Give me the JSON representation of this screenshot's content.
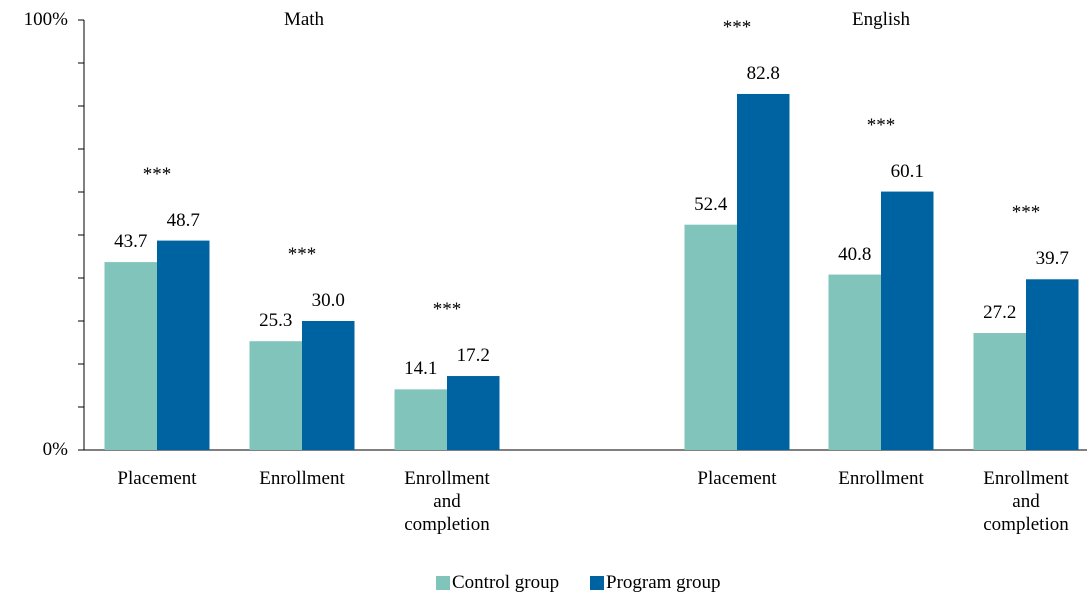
{
  "chart_data": {
    "type": "bar",
    "ylim": [
      0,
      100
    ],
    "yticks": [
      {
        "value": 0,
        "label": "0%"
      },
      {
        "value": 100,
        "label": "100%"
      }
    ],
    "minor_yticks": [
      10,
      20,
      30,
      40,
      50,
      60,
      70,
      80,
      90
    ],
    "panels": [
      {
        "title": "Math",
        "categories": [
          "Placement",
          "Enrollment",
          "Enrollment and completion"
        ],
        "significance": [
          "***",
          "***",
          "***"
        ]
      },
      {
        "title": "English",
        "categories": [
          "Placement",
          "Enrollment",
          "Enrollment and completion"
        ],
        "significance": [
          "***",
          "***",
          "***"
        ]
      }
    ],
    "series": [
      {
        "name": "Control group",
        "color": "#80c4bb",
        "values": [
          [
            43.7,
            25.3,
            14.1
          ],
          [
            52.4,
            40.8,
            27.2
          ]
        ]
      },
      {
        "name": "Program group",
        "color": "#0063a1",
        "values": [
          [
            48.7,
            30.0,
            17.2
          ],
          [
            82.8,
            60.1,
            39.7
          ]
        ]
      }
    ],
    "value_labels": [
      [
        [
          "43.7",
          "25.3",
          "14.1"
        ],
        [
          "52.4",
          "40.8",
          "27.2"
        ]
      ],
      [
        [
          "48.7",
          "30.0",
          "17.2"
        ],
        [
          "82.8",
          "60.1",
          "39.7"
        ]
      ]
    ],
    "legend": "bottom"
  }
}
